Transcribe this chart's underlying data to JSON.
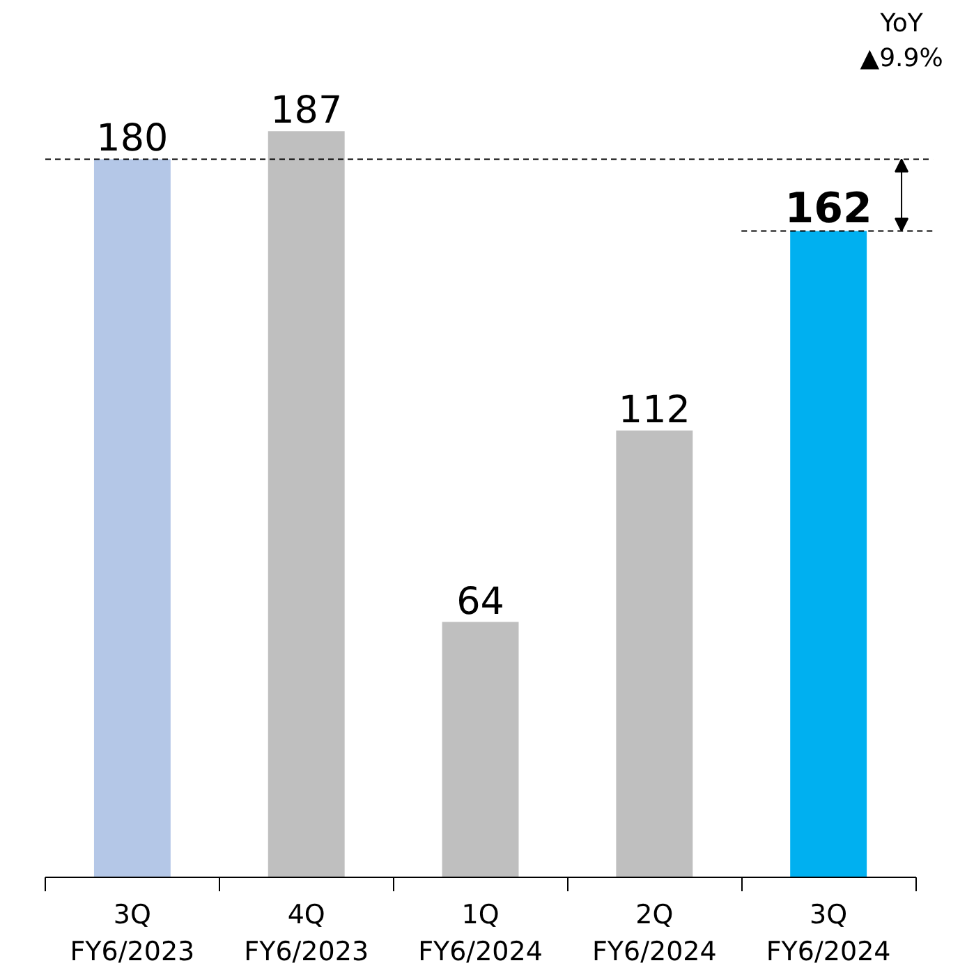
{
  "chart_data": {
    "type": "bar",
    "categories": [
      "3Q\nFY6/2023",
      "4Q\nFY6/2023",
      "1Q\nFY6/2024",
      "2Q\nFY6/2024",
      "3Q\nFY6/2024"
    ],
    "values": [
      180,
      187,
      64,
      112,
      162
    ],
    "colors": [
      "#b4c7e7",
      "#bfbfbf",
      "#bfbfbf",
      "#bfbfbf",
      "#00b0f0"
    ],
    "data_labels": true,
    "ref_lines": [
      {
        "axis": "y",
        "value": 180,
        "line_style": "dashed",
        "color": "#000000"
      },
      {
        "axis": "y",
        "value": 162,
        "line_style": "dashed",
        "color": "#000000"
      }
    ],
    "annotations": [
      "YoY\n▲9.9%"
    ]
  }
}
